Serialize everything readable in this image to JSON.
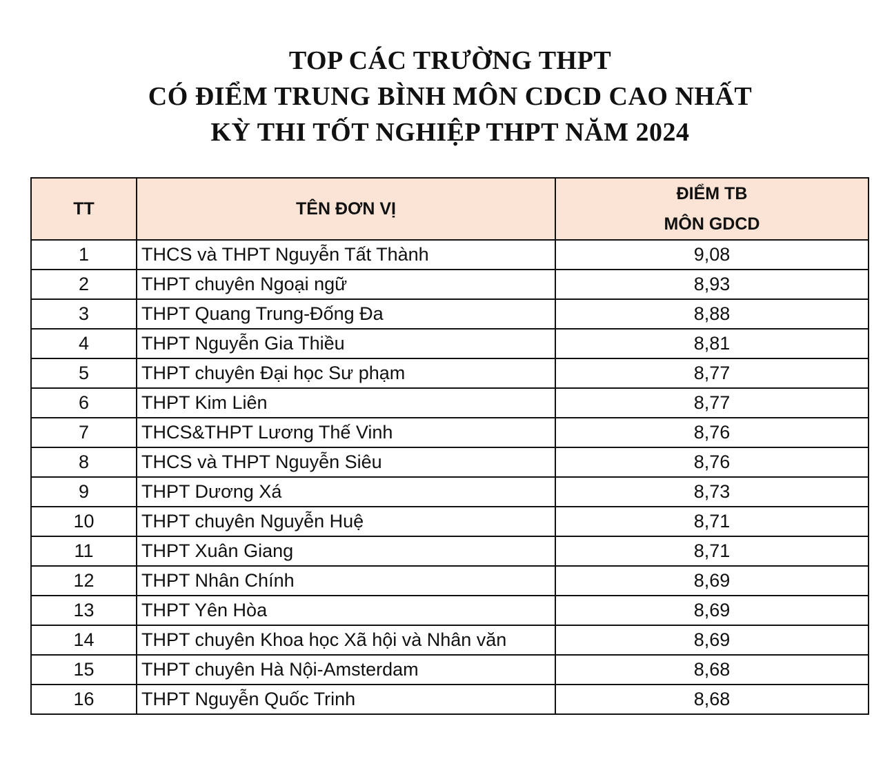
{
  "title": {
    "line1": "TOP CÁC TRƯỜNG THPT",
    "line2": "CÓ ĐIỂM TRUNG BÌNH MÔN CDCD CAO NHẤT",
    "line3": "KỲ THI TỐT NGHIỆP THPT NĂM 2024"
  },
  "table": {
    "headers": {
      "tt": "TT",
      "name": "TÊN ĐƠN VỊ",
      "score_line1": "ĐIỂM TB",
      "score_line2": "MÔN GDCD"
    },
    "header_color": "#fbe4d5",
    "rows": [
      {
        "tt": "1",
        "name": "THCS và THPT Nguyễn Tất Thành",
        "score": "9,08"
      },
      {
        "tt": "2",
        "name": "THPT chuyên Ngoại ngữ",
        "score": "8,93"
      },
      {
        "tt": "3",
        "name": "THPT Quang Trung-Đống Đa",
        "score": "8,88"
      },
      {
        "tt": "4",
        "name": "THPT Nguyễn Gia Thiều",
        "score": "8,81"
      },
      {
        "tt": "5",
        "name": "THPT chuyên Đại học Sư phạm",
        "score": "8,77"
      },
      {
        "tt": "6",
        "name": "THPT Kim Liên",
        "score": "8,77"
      },
      {
        "tt": "7",
        "name": "THCS&THPT Lương Thế Vinh",
        "score": "8,76"
      },
      {
        "tt": "8",
        "name": "THCS và THPT Nguyễn Siêu",
        "score": "8,76"
      },
      {
        "tt": "9",
        "name": "THPT Dương Xá",
        "score": "8,73"
      },
      {
        "tt": "10",
        "name": "THPT chuyên Nguyễn Huệ",
        "score": "8,71"
      },
      {
        "tt": "11",
        "name": "THPT Xuân Giang",
        "score": "8,71"
      },
      {
        "tt": "12",
        "name": "THPT Nhân Chính",
        "score": "8,69"
      },
      {
        "tt": "13",
        "name": "THPT Yên Hòa",
        "score": "8,69"
      },
      {
        "tt": "14",
        "name": "THPT chuyên Khoa học Xã hội và Nhân văn",
        "score": "8,69"
      },
      {
        "tt": "15",
        "name": "THPT chuyên Hà Nội-Amsterdam",
        "score": "8,68"
      },
      {
        "tt": "16",
        "name": "THPT Nguyễn Quốc Trinh",
        "score": "8,68"
      }
    ]
  }
}
